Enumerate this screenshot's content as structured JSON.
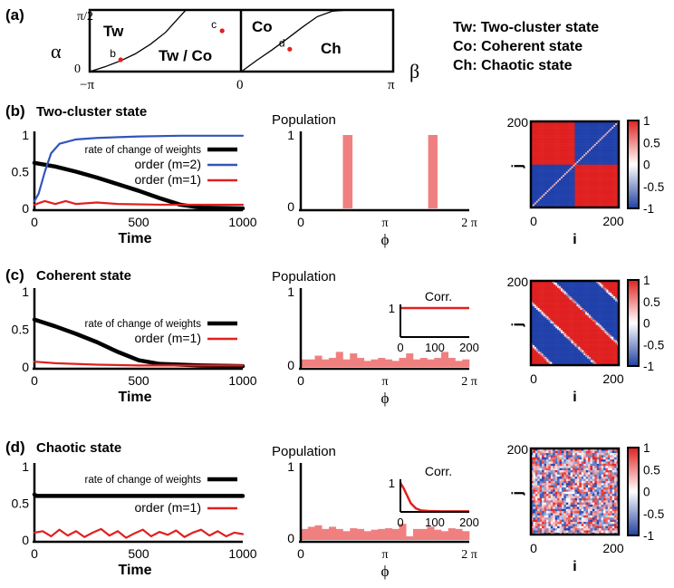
{
  "panel_a": {
    "panel_label": "(a)",
    "y_axis_symbol": "α",
    "x_axis_symbol": "β",
    "y_ticks": [
      "π/2",
      "0"
    ],
    "x_ticks": [
      "−π",
      "0",
      "π"
    ],
    "regions": [
      "Tw",
      "Tw / Co",
      "Co",
      "Ch"
    ],
    "points": [
      {
        "label": "b",
        "beta": -2.5,
        "alpha": 0.3
      },
      {
        "label": "c",
        "beta": -0.4,
        "alpha": 1.04
      },
      {
        "label": "d",
        "beta": 1.0,
        "alpha": 0.57
      }
    ],
    "boundary_left": [
      [
        -3.14,
        0
      ],
      [
        -2.83,
        0.12
      ],
      [
        -2.51,
        0.27
      ],
      [
        -2.2,
        0.45
      ],
      [
        -1.88,
        0.7
      ],
      [
        -1.57,
        1.0
      ],
      [
        -1.35,
        1.3
      ],
      [
        -1.15,
        1.57
      ]
    ],
    "boundary_right": [
      [
        0,
        0
      ],
      [
        0.31,
        0.28
      ],
      [
        0.63,
        0.55
      ],
      [
        0.94,
        0.83
      ],
      [
        1.26,
        1.13
      ],
      [
        1.57,
        1.4
      ],
      [
        1.88,
        1.54
      ],
      [
        2.2,
        1.57
      ]
    ],
    "point_color": "#e02020"
  },
  "legend_text": [
    "Tw: Two-cluster state",
    "Co: Coherent state",
    "Ch: Chaotic state"
  ],
  "rows": [
    {
      "panel_label": "(b)",
      "title": "Two-cluster state",
      "time_xlabel": "Time",
      "time_xticks": [
        "0",
        "500",
        "1000"
      ],
      "time_yticks": [
        "1",
        "0.5",
        "0"
      ],
      "legend": [
        {
          "label": "rate of change of weights",
          "color": "#000000"
        },
        {
          "label": "order (m=2)",
          "color": "#3355bb"
        },
        {
          "label": "order (m=1)",
          "color": "#e02020"
        }
      ],
      "pop_label": "Population",
      "pop_xlabel": "ϕ",
      "pop_xticks": [
        "0",
        "π",
        "2 π"
      ],
      "pop_yticks": [
        "1",
        "0"
      ],
      "corr_title": "",
      "corr_xticks": [],
      "corr_ytick": "",
      "matrix_ylabel": "j",
      "matrix_xlabel": "i",
      "matrix_xticks": [
        "0",
        "200"
      ],
      "matrix_ytick": "200",
      "colorbar_ticks": [
        "1",
        "0.5",
        "0",
        "-0.5",
        "-1"
      ]
    },
    {
      "panel_label": "(c)",
      "title": "Coherent state",
      "time_xlabel": "Time",
      "time_xticks": [
        "0",
        "500",
        "1000"
      ],
      "time_yticks": [
        "1",
        "0.5",
        "0"
      ],
      "legend": [
        {
          "label": "rate of change of weights",
          "color": "#000000"
        },
        {
          "label": "order (m=1)",
          "color": "#e02020"
        }
      ],
      "pop_label": "Population",
      "pop_xlabel": "ϕ",
      "pop_xticks": [
        "0",
        "π",
        "2 π"
      ],
      "pop_yticks": [
        "1",
        "0"
      ],
      "corr_title": "Corr.",
      "corr_xticks": [
        "0",
        "100",
        "200"
      ],
      "corr_ytick": "1",
      "matrix_ylabel": "j",
      "matrix_xlabel": "i",
      "matrix_xticks": [
        "0",
        "200"
      ],
      "matrix_ytick": "200",
      "colorbar_ticks": [
        "1",
        "0.5",
        "0",
        "-0.5",
        "-1"
      ]
    },
    {
      "panel_label": "(d)",
      "title": "Chaotic state",
      "time_xlabel": "Time",
      "time_xticks": [
        "0",
        "500",
        "1000"
      ],
      "time_yticks": [
        "1",
        "0.5",
        "0"
      ],
      "legend": [
        {
          "label": "rate of change of weights",
          "color": "#000000"
        },
        {
          "label": "order (m=1)",
          "color": "#e02020"
        }
      ],
      "pop_label": "Population",
      "pop_xlabel": "ϕ",
      "pop_xticks": [
        "0",
        "π",
        "2 π"
      ],
      "pop_yticks": [
        "1",
        "0"
      ],
      "corr_title": "Corr.",
      "corr_xticks": [
        "0",
        "100",
        "200"
      ],
      "corr_ytick": "1",
      "matrix_ylabel": "j",
      "matrix_xlabel": "i",
      "matrix_xticks": [
        "0",
        "200"
      ],
      "matrix_ytick": "200",
      "colorbar_ticks": [
        "1",
        "0.5",
        "0",
        "-0.5",
        "-1"
      ]
    }
  ],
  "chart_data": [
    {
      "type": "line",
      "panel": "(b) Two-cluster state — time series",
      "xlabel": "Time",
      "xlim": [
        0,
        1000
      ],
      "ylim": [
        0,
        1
      ],
      "series": [
        {
          "name": "rate of change of weights",
          "color": "#000000",
          "points": [
            [
              0,
              0.62
            ],
            [
              100,
              0.57
            ],
            [
              200,
              0.5
            ],
            [
              300,
              0.42
            ],
            [
              400,
              0.33
            ],
            [
              500,
              0.24
            ],
            [
              600,
              0.14
            ],
            [
              700,
              0.05
            ],
            [
              800,
              0.01
            ],
            [
              1000,
              0.0
            ]
          ]
        },
        {
          "name": "order (m=2)",
          "color": "#3355bb",
          "points": [
            [
              0,
              0.1
            ],
            [
              20,
              0.2
            ],
            [
              50,
              0.5
            ],
            [
              80,
              0.75
            ],
            [
              120,
              0.88
            ],
            [
              200,
              0.94
            ],
            [
              300,
              0.96
            ],
            [
              500,
              0.98
            ],
            [
              700,
              0.99
            ],
            [
              1000,
              0.99
            ]
          ]
        },
        {
          "name": "order (m=1)",
          "color": "#e02020",
          "points": [
            [
              0,
              0.05
            ],
            [
              50,
              0.1
            ],
            [
              100,
              0.06
            ],
            [
              150,
              0.1
            ],
            [
              200,
              0.06
            ],
            [
              300,
              0.08
            ],
            [
              400,
              0.06
            ],
            [
              600,
              0.05
            ],
            [
              800,
              0.05
            ],
            [
              1000,
              0.05
            ]
          ]
        }
      ]
    },
    {
      "type": "bar",
      "panel": "(b) Two-cluster state — population histogram",
      "xlabel": "ϕ",
      "xlim": [
        0,
        6.2832
      ],
      "ylim": [
        0,
        1
      ],
      "bins": [
        {
          "x": [
            1.57,
            1.93
          ],
          "value": 1.0
        },
        {
          "x": [
            4.75,
            5.1
          ],
          "value": 1.0
        }
      ]
    },
    {
      "type": "heatmap",
      "panel": "(b) Two-cluster state — weight matrix",
      "xlabel": "i",
      "ylabel": "j",
      "xlim": [
        0,
        200
      ],
      "ylim": [
        0,
        200
      ],
      "zlim": [
        -1,
        1
      ],
      "pattern": "two-cluster",
      "cluster_boundary": 100,
      "value_same_cluster": 1,
      "value_other_cluster": -1
    },
    {
      "type": "line",
      "panel": "(c) Coherent state — time series",
      "xlabel": "Time",
      "xlim": [
        0,
        1000
      ],
      "ylim": [
        0,
        1
      ],
      "series": [
        {
          "name": "rate of change of weights",
          "color": "#000000",
          "points": [
            [
              0,
              0.63
            ],
            [
              100,
              0.54
            ],
            [
              200,
              0.44
            ],
            [
              300,
              0.33
            ],
            [
              400,
              0.2
            ],
            [
              500,
              0.09
            ],
            [
              600,
              0.04
            ],
            [
              800,
              0.02
            ],
            [
              1000,
              0.01
            ]
          ]
        },
        {
          "name": "order (m=1)",
          "color": "#e02020",
          "points": [
            [
              0,
              0.07
            ],
            [
              100,
              0.05
            ],
            [
              300,
              0.03
            ],
            [
              500,
              0.02
            ],
            [
              1000,
              0.02
            ]
          ]
        }
      ]
    },
    {
      "type": "bar",
      "panel": "(c) Coherent state — population histogram",
      "xlabel": "ϕ",
      "xlim": [
        0,
        6.2832
      ],
      "ylim": [
        0,
        1
      ],
      "bins_uniform": [
        0.1,
        0.1,
        0.15,
        0.1,
        0.12,
        0.2,
        0.1,
        0.18,
        0.12,
        0.08,
        0.1,
        0.12,
        0.1,
        0.08,
        0.12,
        0.18,
        0.1,
        0.12,
        0.1,
        0.12,
        0.2,
        0.12,
        0.08,
        0.1
      ]
    },
    {
      "type": "line",
      "panel": "(c) Coherent state — correlation inset",
      "xlim": [
        0,
        200
      ],
      "ylim": [
        0,
        1
      ],
      "series": [
        {
          "name": "Corr.",
          "color": "#e02020",
          "points": [
            [
              0,
              1
            ],
            [
              50,
              1
            ],
            [
              100,
              1
            ],
            [
              150,
              1
            ],
            [
              200,
              1
            ]
          ]
        }
      ]
    },
    {
      "type": "heatmap",
      "panel": "(c) Coherent state — weight matrix",
      "xlabel": "i",
      "ylabel": "j",
      "xlim": [
        0,
        200
      ],
      "ylim": [
        0,
        200
      ],
      "zlim": [
        -1,
        1
      ],
      "pattern": "diagonal-band",
      "band_half_width": 50
    },
    {
      "type": "line",
      "panel": "(d) Chaotic state — time series",
      "xlabel": "Time",
      "xlim": [
        0,
        1000
      ],
      "ylim": [
        0,
        1
      ],
      "series": [
        {
          "name": "rate of change of weights",
          "color": "#000000",
          "points": [
            [
              0,
              0.62
            ],
            [
              10,
              0.6
            ],
            [
              50,
              0.6
            ],
            [
              500,
              0.6
            ],
            [
              1000,
              0.6
            ]
          ]
        },
        {
          "name": "order (m=1)",
          "color": "#e02020",
          "points": [
            [
              0,
              0.1
            ],
            [
              40,
              0.12
            ],
            [
              80,
              0.05
            ],
            [
              120,
              0.14
            ],
            [
              160,
              0.06
            ],
            [
              200,
              0.12
            ],
            [
              240,
              0.04
            ],
            [
              280,
              0.1
            ],
            [
              320,
              0.15
            ],
            [
              360,
              0.06
            ],
            [
              400,
              0.12
            ],
            [
              440,
              0.03
            ],
            [
              480,
              0.09
            ],
            [
              520,
              0.14
            ],
            [
              560,
              0.05
            ],
            [
              600,
              0.11
            ],
            [
              640,
              0.07
            ],
            [
              680,
              0.13
            ],
            [
              720,
              0.04
            ],
            [
              760,
              0.1
            ],
            [
              800,
              0.14
            ],
            [
              840,
              0.06
            ],
            [
              880,
              0.12
            ],
            [
              920,
              0.05
            ],
            [
              960,
              0.1
            ],
            [
              1000,
              0.08
            ]
          ]
        }
      ]
    },
    {
      "type": "bar",
      "panel": "(d) Chaotic state — population histogram",
      "xlabel": "ϕ",
      "xlim": [
        0,
        6.2832
      ],
      "ylim": [
        0,
        1
      ],
      "bins_uniform": [
        0.15,
        0.18,
        0.2,
        0.15,
        0.18,
        0.15,
        0.12,
        0.16,
        0.15,
        0.12,
        0.14,
        0.15,
        0.16,
        0.15,
        0.22,
        0.05,
        0.15,
        0.15,
        0.18,
        0.14,
        0.12,
        0.16,
        0.15,
        0.12
      ]
    },
    {
      "type": "line",
      "panel": "(d) Chaotic state — correlation inset",
      "xlim": [
        0,
        200
      ],
      "ylim": [
        0,
        1
      ],
      "series": [
        {
          "name": "Corr.",
          "color": "#e02020",
          "points": [
            [
              0,
              1
            ],
            [
              10,
              0.8
            ],
            [
              20,
              0.55
            ],
            [
              30,
              0.3
            ],
            [
              45,
              0.12
            ],
            [
              60,
              0.05
            ],
            [
              80,
              0.03
            ],
            [
              120,
              0.02
            ],
            [
              200,
              0.02
            ]
          ]
        }
      ]
    },
    {
      "type": "heatmap",
      "panel": "(d) Chaotic state — weight matrix",
      "xlabel": "i",
      "ylabel": "j",
      "xlim": [
        0,
        200
      ],
      "ylim": [
        0,
        200
      ],
      "zlim": [
        -1,
        1
      ],
      "pattern": "random"
    }
  ]
}
